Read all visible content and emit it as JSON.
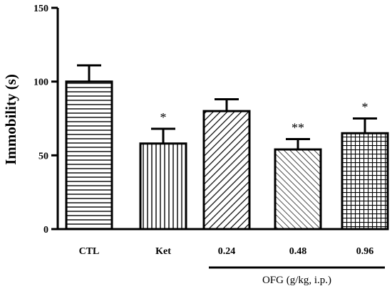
{
  "chart_data": {
    "type": "bar",
    "title": "",
    "ylabel": "Immobility (s)",
    "xlabel": "",
    "ylim": [
      0,
      150
    ],
    "yticks": [
      0,
      50,
      100,
      150
    ],
    "grid": false,
    "categories": [
      "CTL",
      "Ket",
      "0.24",
      "0.48",
      "0.96"
    ],
    "values": [
      100,
      58,
      80,
      54,
      65
    ],
    "errors": [
      11,
      10,
      8,
      7,
      10
    ],
    "significance": [
      "",
      "*",
      "",
      "**",
      "*"
    ],
    "patterns": [
      "horizontal",
      "vertical",
      "diagonal-up",
      "diagonal-down",
      "grid"
    ],
    "group_label": "OFG (g/kg, i.p.)",
    "group_categories": [
      "0.24",
      "0.48",
      "0.96"
    ],
    "colors": {
      "ink": "#000000",
      "background": "#ffffff"
    }
  }
}
